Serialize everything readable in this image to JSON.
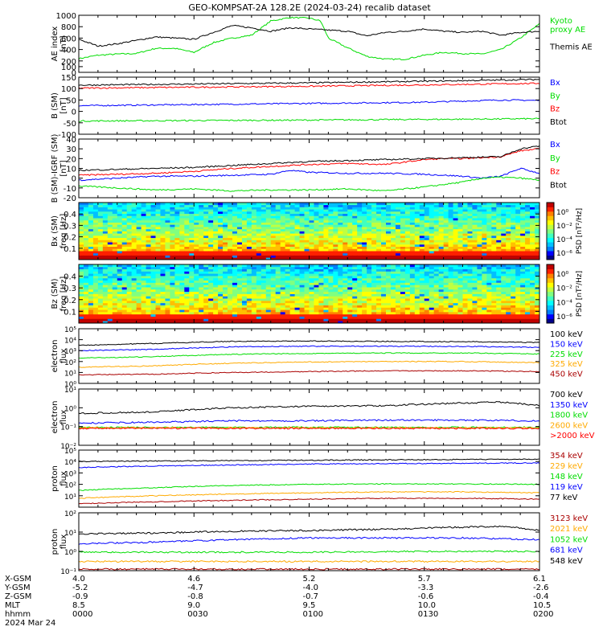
{
  "title": "GEO-KOMPSAT-2A 128.2E (2024-03-24) recalib dataset",
  "chart_data": [
    {
      "type": "line",
      "ylabel": "AE index\n[nT]",
      "ylim": [
        0,
        1000
      ],
      "yticks": [
        0,
        100,
        200,
        400,
        600,
        800,
        1000
      ],
      "series": [
        {
          "name": "Kyoto\nproxy AE",
          "color": "#00dd00",
          "t": [
            0,
            5,
            10,
            15,
            20,
            25,
            30,
            35,
            40,
            45,
            50,
            55,
            60,
            63,
            65,
            70,
            75,
            80,
            85,
            90,
            95,
            100,
            105,
            110,
            115,
            120
          ],
          "y": [
            240,
            300,
            320,
            330,
            420,
            420,
            350,
            520,
            600,
            650,
            900,
            960,
            950,
            900,
            600,
            430,
            280,
            230,
            230,
            300,
            350,
            330,
            320,
            400,
            600,
            850
          ]
        },
        {
          "name": "Themis AE",
          "color": "#000000",
          "t": [
            0,
            5,
            10,
            15,
            20,
            25,
            30,
            35,
            40,
            45,
            50,
            55,
            60,
            65,
            70,
            75,
            80,
            85,
            90,
            95,
            100,
            105,
            110,
            115,
            120
          ],
          "y": [
            580,
            460,
            500,
            560,
            620,
            600,
            580,
            700,
            820,
            780,
            720,
            780,
            760,
            740,
            720,
            640,
            700,
            720,
            760,
            720,
            700,
            720,
            650,
            700,
            720
          ]
        }
      ]
    },
    {
      "type": "line",
      "ylabel": "B (SM)\n[nT]",
      "ylim": [
        -100,
        150
      ],
      "yticks": [
        -100,
        -50,
        0,
        50,
        100,
        150
      ],
      "series": [
        {
          "name": "Bx",
          "color": "#0000ff",
          "t": [
            0,
            30,
            60,
            90,
            110,
            120
          ],
          "y": [
            25,
            30,
            35,
            40,
            50,
            48
          ]
        },
        {
          "name": "By",
          "color": "#00dd00",
          "t": [
            0,
            30,
            60,
            90,
            120
          ],
          "y": [
            -42,
            -40,
            -38,
            -35,
            -32
          ]
        },
        {
          "name": "Bz",
          "color": "#ff0000",
          "t": [
            0,
            30,
            60,
            90,
            120
          ],
          "y": [
            102,
            106,
            110,
            116,
            123
          ]
        },
        {
          "name": "Btot",
          "color": "#000000",
          "t": [
            0,
            30,
            60,
            90,
            120
          ],
          "y": [
            115,
            120,
            125,
            132,
            140
          ]
        }
      ]
    },
    {
      "type": "line",
      "ylabel": "B (SM)-IGRF (SM)\n[nT]",
      "ylim": [
        -20,
        40
      ],
      "yticks": [
        -20,
        -10,
        0,
        10,
        20,
        30,
        40
      ],
      "series": [
        {
          "name": "Bx",
          "color": "#0000ff",
          "t": [
            0,
            10,
            20,
            30,
            40,
            50,
            55,
            60,
            70,
            80,
            90,
            100,
            105,
            110,
            115,
            120
          ],
          "y": [
            -2,
            0,
            2,
            2,
            3,
            4,
            8,
            6,
            5,
            5,
            4,
            2,
            0,
            2,
            10,
            5
          ]
        },
        {
          "name": "By",
          "color": "#00dd00",
          "t": [
            0,
            10,
            20,
            30,
            40,
            50,
            60,
            70,
            80,
            90,
            100,
            105,
            110,
            115,
            120
          ],
          "y": [
            -8,
            -10,
            -12,
            -11,
            -13,
            -12,
            -12,
            -11,
            -13,
            -9,
            -4,
            0,
            1,
            0,
            -2
          ]
        },
        {
          "name": "Bz",
          "color": "#ff0000",
          "t": [
            0,
            10,
            20,
            30,
            40,
            50,
            60,
            70,
            80,
            90,
            95,
            100,
            110,
            115,
            120
          ],
          "y": [
            3,
            4,
            5,
            7,
            10,
            12,
            14,
            15,
            14,
            19,
            20,
            20,
            22,
            28,
            30
          ]
        },
        {
          "name": "Btot",
          "color": "#000000",
          "t": [
            0,
            10,
            20,
            30,
            40,
            50,
            60,
            70,
            80,
            90,
            100,
            110,
            115,
            120
          ],
          "y": [
            8,
            9,
            10,
            11,
            13,
            15,
            17,
            18,
            19,
            20,
            21,
            22,
            30,
            33
          ]
        }
      ]
    },
    {
      "type": "heatmap",
      "ylabel": "Bx (SM)\nfreq [Hz]",
      "ylim": [
        0,
        0.5
      ],
      "yticks": [
        0.1,
        0.2,
        0.3,
        0.4
      ],
      "colorbar_label": "PSD [nT²/Hz]",
      "colorbar_ticks": [
        "10⁰",
        "10⁻²",
        "10⁻⁴",
        "10⁻⁶"
      ]
    },
    {
      "type": "heatmap",
      "ylabel": "Bz (SM)\nfreq [Hz]",
      "ylim": [
        0,
        0.5
      ],
      "yticks": [
        0.1,
        0.2,
        0.3,
        0.4
      ],
      "colorbar_label": "PSD [nT²/Hz]",
      "colorbar_ticks": [
        "10⁰",
        "10⁻²",
        "10⁻⁴",
        "10⁻⁶"
      ]
    },
    {
      "type": "line",
      "log": true,
      "ylabel": "electron\nflux",
      "ylim": [
        1,
        100000
      ],
      "yticks": [
        "10⁰",
        "10¹",
        "10²",
        "10³",
        "10⁴",
        "10⁵"
      ],
      "series": [
        {
          "name": "100 keV",
          "color": "#000000",
          "t": [
            0,
            20,
            40,
            60,
            80,
            100,
            120
          ],
          "y": [
            3000,
            4500,
            7000,
            7500,
            7000,
            6500,
            5500
          ]
        },
        {
          "name": "150 keV",
          "color": "#0000ff",
          "t": [
            0,
            20,
            40,
            60,
            80,
            100,
            120
          ],
          "y": [
            1000,
            1300,
            2200,
            2500,
            2500,
            2400,
            2000
          ]
        },
        {
          "name": "225 keV",
          "color": "#00dd00",
          "t": [
            0,
            20,
            40,
            60,
            80,
            100,
            120
          ],
          "y": [
            200,
            280,
            450,
            550,
            600,
            600,
            500
          ]
        },
        {
          "name": "325 keV",
          "color": "#ffaa00",
          "t": [
            0,
            20,
            40,
            60,
            80,
            100,
            120
          ],
          "y": [
            30,
            40,
            70,
            90,
            100,
            100,
            80
          ]
        },
        {
          "name": "450 keV",
          "color": "#aa0000",
          "t": [
            0,
            20,
            40,
            60,
            80,
            100,
            120
          ],
          "y": [
            6,
            7,
            10,
            12,
            14,
            14,
            12
          ]
        }
      ]
    },
    {
      "type": "line",
      "log": true,
      "ylabel": "electron\nflux",
      "ylim": [
        0.01,
        10
      ],
      "yticks": [
        "10⁻²",
        "10⁻¹",
        "10⁰",
        "10¹"
      ],
      "series": [
        {
          "name": "700 keV",
          "color": "#000000",
          "t": [
            0,
            20,
            40,
            60,
            80,
            100,
            110,
            120
          ],
          "y": [
            0.5,
            0.6,
            1.0,
            1.2,
            1.3,
            1.8,
            2.0,
            1.3
          ]
        },
        {
          "name": "1350 keV",
          "color": "#0000ff",
          "t": [
            0,
            20,
            40,
            60,
            80,
            100,
            120
          ],
          "y": [
            0.15,
            0.17,
            0.2,
            0.2,
            0.22,
            0.22,
            0.2
          ]
        },
        {
          "name": "1800 keV",
          "color": "#00dd00",
          "t": [
            0,
            30,
            60,
            90,
            120
          ],
          "y": [
            0.09,
            0.09,
            0.09,
            0.09,
            0.09
          ]
        },
        {
          "name": "2600 keV",
          "color": "#ffaa00",
          "t": [
            0,
            30,
            60,
            90,
            120
          ],
          "y": [
            0.085,
            0.085,
            0.085,
            0.085,
            0.085
          ]
        },
        {
          "name": ">2000 keV",
          "color": "#ff0000",
          "t": [
            0,
            30,
            60,
            90,
            120
          ],
          "y": [
            0.08,
            0.08,
            0.08,
            0.08,
            0.08
          ]
        }
      ]
    },
    {
      "type": "line",
      "log": true,
      "ylabel": "proton\nflux",
      "ylim": [
        1,
        100000
      ],
      "yticks": [
        "10¹",
        "10²",
        "10³",
        "10⁴",
        "10⁵"
      ],
      "series": [
        {
          "name": "354 keV",
          "color": "#aa0000",
          "t": [
            0,
            20,
            40,
            60,
            80,
            100,
            120
          ],
          "y": [
            2,
            3,
            4,
            5,
            6,
            6,
            5
          ]
        },
        {
          "name": "229 keV",
          "color": "#ffaa00",
          "t": [
            0,
            20,
            40,
            60,
            80,
            100,
            120
          ],
          "y": [
            6,
            10,
            14,
            18,
            22,
            22,
            18
          ]
        },
        {
          "name": "148 keV",
          "color": "#00dd00",
          "t": [
            0,
            20,
            40,
            60,
            80,
            100,
            120
          ],
          "y": [
            30,
            50,
            80,
            100,
            110,
            110,
            100
          ]
        },
        {
          "name": "119 keV",
          "color": "#0000ff",
          "t": [
            0,
            20,
            40,
            60,
            80,
            100,
            120
          ],
          "y": [
            3000,
            4000,
            5000,
            6000,
            6500,
            7000,
            7500
          ]
        },
        {
          "name": "77 keV",
          "color": "#000000",
          "t": [
            0,
            20,
            40,
            60,
            80,
            100,
            120
          ],
          "y": [
            10000,
            11000,
            12000,
            13000,
            14000,
            15000,
            16000
          ]
        }
      ]
    },
    {
      "type": "line",
      "log": true,
      "ylabel": "proton\nflux",
      "ylim": [
        0.1,
        100
      ],
      "yticks": [
        "10⁻¹",
        "10⁰",
        "10¹",
        "10²"
      ],
      "series": [
        {
          "name": "3123 keV",
          "color": "#aa0000",
          "t": [
            0,
            30,
            60,
            90,
            120
          ],
          "y": [
            0.12,
            0.12,
            0.12,
            0.12,
            0.12
          ]
        },
        {
          "name": "2021 keV",
          "color": "#ffaa00",
          "t": [
            0,
            30,
            60,
            90,
            120
          ],
          "y": [
            0.3,
            0.3,
            0.3,
            0.3,
            0.3
          ]
        },
        {
          "name": "1052 keV",
          "color": "#00dd00",
          "t": [
            0,
            30,
            60,
            90,
            120
          ],
          "y": [
            0.9,
            0.9,
            0.9,
            1.0,
            1.0
          ]
        },
        {
          "name": "681 keV",
          "color": "#0000ff",
          "t": [
            0,
            20,
            40,
            60,
            80,
            100,
            120
          ],
          "y": [
            2.5,
            3,
            4,
            5,
            5,
            5,
            4
          ]
        },
        {
          "name": "548 keV",
          "color": "#000000",
          "t": [
            0,
            20,
            40,
            60,
            80,
            100,
            110,
            120
          ],
          "y": [
            8,
            9,
            11,
            12,
            14,
            18,
            20,
            12
          ]
        }
      ]
    }
  ],
  "time_axis": {
    "t_range": [
      0,
      120
    ],
    "row_labels": [
      "X-GSM",
      "Y-GSM",
      "Z-GSM",
      "MLT",
      "hhmm"
    ],
    "ticks": [
      {
        "t": 0,
        "values": [
          "4.0",
          "-5.2",
          "-0.9",
          "8.5",
          "0000"
        ]
      },
      {
        "t": 30,
        "values": [
          "4.6",
          "-4.7",
          "-0.8",
          "9.0",
          "0030"
        ]
      },
      {
        "t": 60,
        "values": [
          "5.2",
          "-4.0",
          "-0.7",
          "9.5",
          "0100"
        ]
      },
      {
        "t": 90,
        "values": [
          "5.7",
          "-3.3",
          "-0.6",
          "10.0",
          "0130"
        ]
      },
      {
        "t": 120,
        "values": [
          "6.1",
          "-2.6",
          "-0.4",
          "10.5",
          "0200"
        ]
      }
    ],
    "date": "2024 Mar 24"
  }
}
